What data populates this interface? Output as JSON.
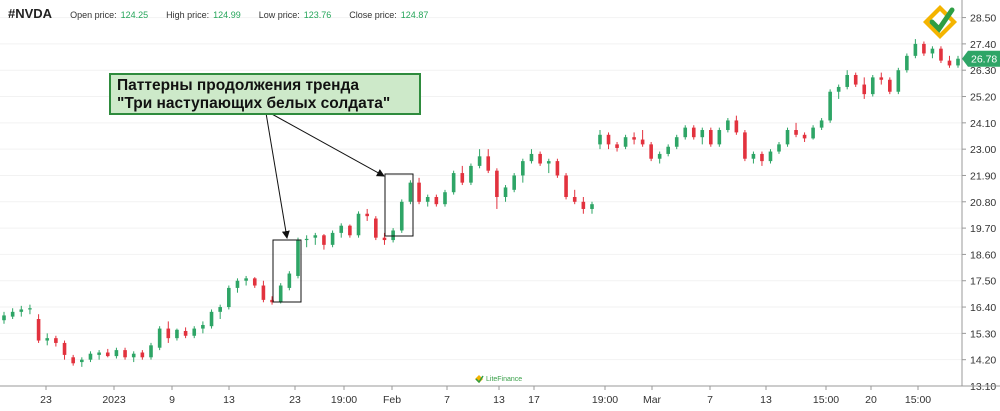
{
  "header": {
    "ticker": "#NVDA",
    "open_label": "Open price:",
    "open_value": "124.25",
    "high_label": "High price:",
    "high_value": "124.99",
    "low_label": "Low price:",
    "low_value": "123.76",
    "close_label": "Close price:",
    "close_value": "124.87"
  },
  "annotation": {
    "line1": "Паттерны продолжения тренда",
    "line2": "\"Три наступающих белых солдата\""
  },
  "colors": {
    "bull": "#2ea566",
    "bear": "#e2323e",
    "price_tag": "#2ea566",
    "callout_bg": "#cde9c9",
    "callout_border": "#2e8b3d"
  },
  "watermark": "LiteFinance",
  "chart_data": {
    "type": "candlestick",
    "ylim": [
      13.1,
      28.9
    ],
    "y_ticks": [
      "28.50",
      "27.40",
      "26.30",
      "25.20",
      "24.10",
      "23.00",
      "21.90",
      "20.80",
      "19.70",
      "18.60",
      "17.50",
      "16.40",
      "15.30",
      "14.20",
      "13.10"
    ],
    "x_ticks": [
      "23",
      "2023",
      "9",
      "13",
      "23",
      "19:00",
      "Feb",
      "7",
      "13",
      "17",
      "19:00",
      "Mar",
      "7",
      "13",
      "15:00",
      "20",
      "15:00"
    ],
    "last_price": "26.78",
    "candles": [
      {
        "o": 15.85,
        "h": 16.2,
        "l": 15.7,
        "c": 16.05
      },
      {
        "o": 16.0,
        "h": 16.35,
        "l": 15.9,
        "c": 16.2
      },
      {
        "o": 16.2,
        "h": 16.45,
        "l": 16.0,
        "c": 16.3
      },
      {
        "o": 16.3,
        "h": 16.5,
        "l": 16.1,
        "c": 16.35
      },
      {
        "o": 15.9,
        "h": 16.1,
        "l": 14.9,
        "c": 15.0
      },
      {
        "o": 15.0,
        "h": 15.3,
        "l": 14.8,
        "c": 15.1
      },
      {
        "o": 15.1,
        "h": 15.2,
        "l": 14.75,
        "c": 14.9
      },
      {
        "o": 14.9,
        "h": 15.0,
        "l": 14.2,
        "c": 14.4
      },
      {
        "o": 14.3,
        "h": 14.4,
        "l": 13.95,
        "c": 14.05
      },
      {
        "o": 14.1,
        "h": 14.3,
        "l": 13.9,
        "c": 14.2
      },
      {
        "o": 14.2,
        "h": 14.55,
        "l": 14.1,
        "c": 14.45
      },
      {
        "o": 14.4,
        "h": 14.6,
        "l": 14.2,
        "c": 14.5
      },
      {
        "o": 14.5,
        "h": 14.65,
        "l": 14.3,
        "c": 14.35
      },
      {
        "o": 14.35,
        "h": 14.7,
        "l": 14.25,
        "c": 14.6
      },
      {
        "o": 14.6,
        "h": 14.7,
        "l": 14.2,
        "c": 14.3
      },
      {
        "o": 14.3,
        "h": 14.55,
        "l": 14.1,
        "c": 14.45
      },
      {
        "o": 14.5,
        "h": 14.6,
        "l": 14.2,
        "c": 14.3
      },
      {
        "o": 14.3,
        "h": 14.9,
        "l": 14.2,
        "c": 14.8
      },
      {
        "o": 14.7,
        "h": 15.6,
        "l": 14.6,
        "c": 15.5
      },
      {
        "o": 15.5,
        "h": 15.8,
        "l": 14.9,
        "c": 15.1
      },
      {
        "o": 15.1,
        "h": 15.5,
        "l": 15.0,
        "c": 15.45
      },
      {
        "o": 15.4,
        "h": 15.55,
        "l": 15.1,
        "c": 15.2
      },
      {
        "o": 15.2,
        "h": 15.6,
        "l": 15.1,
        "c": 15.5
      },
      {
        "o": 15.5,
        "h": 15.8,
        "l": 15.3,
        "c": 15.65
      },
      {
        "o": 15.6,
        "h": 16.3,
        "l": 15.5,
        "c": 16.2
      },
      {
        "o": 16.2,
        "h": 16.5,
        "l": 15.9,
        "c": 16.4
      },
      {
        "o": 16.4,
        "h": 17.3,
        "l": 16.3,
        "c": 17.2
      },
      {
        "o": 17.2,
        "h": 17.6,
        "l": 17.0,
        "c": 17.5
      },
      {
        "o": 17.5,
        "h": 17.7,
        "l": 17.3,
        "c": 17.6
      },
      {
        "o": 17.6,
        "h": 17.65,
        "l": 17.2,
        "c": 17.3
      },
      {
        "o": 17.3,
        "h": 17.5,
        "l": 16.6,
        "c": 16.7
      },
      {
        "o": 16.7,
        "h": 16.85,
        "l": 16.5,
        "c": 16.6
      },
      {
        "o": 16.6,
        "h": 17.4,
        "l": 16.55,
        "c": 17.3
      },
      {
        "o": 17.2,
        "h": 17.9,
        "l": 17.1,
        "c": 17.8
      },
      {
        "o": 17.7,
        "h": 19.3,
        "l": 17.6,
        "c": 19.2
      },
      {
        "o": 19.2,
        "h": 19.4,
        "l": 18.9,
        "c": 19.25
      },
      {
        "o": 19.3,
        "h": 19.5,
        "l": 19.0,
        "c": 19.4
      },
      {
        "o": 19.4,
        "h": 19.45,
        "l": 18.8,
        "c": 19.0
      },
      {
        "o": 19.0,
        "h": 19.6,
        "l": 18.9,
        "c": 19.5
      },
      {
        "o": 19.5,
        "h": 19.9,
        "l": 19.3,
        "c": 19.8
      },
      {
        "o": 19.8,
        "h": 19.85,
        "l": 19.3,
        "c": 19.4
      },
      {
        "o": 19.4,
        "h": 20.4,
        "l": 19.3,
        "c": 20.3
      },
      {
        "o": 20.3,
        "h": 20.5,
        "l": 20.0,
        "c": 20.2
      },
      {
        "o": 20.1,
        "h": 20.2,
        "l": 19.2,
        "c": 19.3
      },
      {
        "o": 19.3,
        "h": 19.5,
        "l": 19.0,
        "c": 19.2
      },
      {
        "o": 19.2,
        "h": 19.7,
        "l": 19.1,
        "c": 19.6
      },
      {
        "o": 19.6,
        "h": 20.9,
        "l": 19.5,
        "c": 20.8
      },
      {
        "o": 20.8,
        "h": 21.7,
        "l": 20.7,
        "c": 21.6
      },
      {
        "o": 21.6,
        "h": 21.8,
        "l": 20.7,
        "c": 20.8
      },
      {
        "o": 20.8,
        "h": 21.1,
        "l": 20.6,
        "c": 21.0
      },
      {
        "o": 21.0,
        "h": 21.1,
        "l": 20.6,
        "c": 20.7
      },
      {
        "o": 20.7,
        "h": 21.3,
        "l": 20.6,
        "c": 21.2
      },
      {
        "o": 21.2,
        "h": 22.1,
        "l": 21.1,
        "c": 22.0
      },
      {
        "o": 22.0,
        "h": 22.3,
        "l": 21.5,
        "c": 21.6
      },
      {
        "o": 21.6,
        "h": 22.4,
        "l": 21.5,
        "c": 22.3
      },
      {
        "o": 22.3,
        "h": 23.0,
        "l": 22.2,
        "c": 22.7
      },
      {
        "o": 22.7,
        "h": 23.0,
        "l": 22.0,
        "c": 22.1
      },
      {
        "o": 22.1,
        "h": 22.2,
        "l": 20.5,
        "c": 21.0
      },
      {
        "o": 21.0,
        "h": 21.5,
        "l": 20.8,
        "c": 21.4
      },
      {
        "o": 21.3,
        "h": 22.0,
        "l": 21.2,
        "c": 21.9
      },
      {
        "o": 21.9,
        "h": 22.6,
        "l": 21.6,
        "c": 22.5
      },
      {
        "o": 22.5,
        "h": 23.0,
        "l": 22.4,
        "c": 22.8
      },
      {
        "o": 22.8,
        "h": 22.9,
        "l": 22.3,
        "c": 22.4
      },
      {
        "o": 22.4,
        "h": 22.6,
        "l": 22.0,
        "c": 22.5
      },
      {
        "o": 22.5,
        "h": 22.6,
        "l": 21.8,
        "c": 21.9
      },
      {
        "o": 21.9,
        "h": 22.0,
        "l": 20.9,
        "c": 21.0
      },
      {
        "o": 21.0,
        "h": 21.3,
        "l": 20.7,
        "c": 20.8
      },
      {
        "o": 20.8,
        "h": 21.0,
        "l": 20.3,
        "c": 20.5
      },
      {
        "o": 20.5,
        "h": 20.8,
        "l": 20.3,
        "c": 20.7
      },
      {
        "o": 23.2,
        "h": 23.8,
        "l": 23.0,
        "c": 23.6
      },
      {
        "o": 23.6,
        "h": 23.7,
        "l": 23.0,
        "c": 23.2
      },
      {
        "o": 23.2,
        "h": 23.3,
        "l": 22.9,
        "c": 23.05
      },
      {
        "o": 23.1,
        "h": 23.6,
        "l": 23.0,
        "c": 23.5
      },
      {
        "o": 23.5,
        "h": 23.7,
        "l": 23.2,
        "c": 23.4
      },
      {
        "o": 23.4,
        "h": 23.8,
        "l": 23.1,
        "c": 23.2
      },
      {
        "o": 23.2,
        "h": 23.3,
        "l": 22.5,
        "c": 22.6
      },
      {
        "o": 22.6,
        "h": 22.9,
        "l": 22.4,
        "c": 22.8
      },
      {
        "o": 22.8,
        "h": 23.2,
        "l": 22.7,
        "c": 23.1
      },
      {
        "o": 23.1,
        "h": 23.6,
        "l": 23.0,
        "c": 23.5
      },
      {
        "o": 23.5,
        "h": 24.0,
        "l": 23.4,
        "c": 23.9
      },
      {
        "o": 23.9,
        "h": 24.0,
        "l": 23.4,
        "c": 23.5
      },
      {
        "o": 23.5,
        "h": 23.9,
        "l": 23.2,
        "c": 23.8
      },
      {
        "o": 23.8,
        "h": 23.9,
        "l": 23.1,
        "c": 23.2
      },
      {
        "o": 23.2,
        "h": 23.9,
        "l": 23.1,
        "c": 23.8
      },
      {
        "o": 23.8,
        "h": 24.3,
        "l": 23.7,
        "c": 24.2
      },
      {
        "o": 24.2,
        "h": 24.4,
        "l": 23.6,
        "c": 23.7
      },
      {
        "o": 23.7,
        "h": 23.8,
        "l": 22.5,
        "c": 22.6
      },
      {
        "o": 22.6,
        "h": 22.9,
        "l": 22.4,
        "c": 22.8
      },
      {
        "o": 22.8,
        "h": 22.9,
        "l": 22.3,
        "c": 22.5
      },
      {
        "o": 22.5,
        "h": 23.0,
        "l": 22.4,
        "c": 22.9
      },
      {
        "o": 22.9,
        "h": 23.3,
        "l": 22.8,
        "c": 23.2
      },
      {
        "o": 23.2,
        "h": 23.9,
        "l": 23.1,
        "c": 23.8
      },
      {
        "o": 23.8,
        "h": 24.1,
        "l": 23.5,
        "c": 23.6
      },
      {
        "o": 23.6,
        "h": 23.7,
        "l": 23.3,
        "c": 23.45
      },
      {
        "o": 23.45,
        "h": 24.0,
        "l": 23.4,
        "c": 23.9
      },
      {
        "o": 23.9,
        "h": 24.3,
        "l": 23.8,
        "c": 24.2
      },
      {
        "o": 24.2,
        "h": 25.5,
        "l": 24.1,
        "c": 25.4
      },
      {
        "o": 25.4,
        "h": 25.7,
        "l": 25.1,
        "c": 25.6
      },
      {
        "o": 25.6,
        "h": 26.3,
        "l": 25.5,
        "c": 26.1
      },
      {
        "o": 26.1,
        "h": 26.2,
        "l": 25.6,
        "c": 25.7
      },
      {
        "o": 25.7,
        "h": 26.0,
        "l": 25.1,
        "c": 25.3
      },
      {
        "o": 25.3,
        "h": 26.1,
        "l": 25.2,
        "c": 26.0
      },
      {
        "o": 26.0,
        "h": 26.2,
        "l": 25.7,
        "c": 25.9
      },
      {
        "o": 25.9,
        "h": 26.0,
        "l": 25.3,
        "c": 25.4
      },
      {
        "o": 25.4,
        "h": 26.4,
        "l": 25.3,
        "c": 26.3
      },
      {
        "o": 26.3,
        "h": 27.0,
        "l": 26.2,
        "c": 26.9
      },
      {
        "o": 26.9,
        "h": 27.6,
        "l": 26.8,
        "c": 27.4
      },
      {
        "o": 27.4,
        "h": 27.5,
        "l": 26.9,
        "c": 27.0
      },
      {
        "o": 27.0,
        "h": 27.3,
        "l": 26.8,
        "c": 27.2
      },
      {
        "o": 27.2,
        "h": 27.3,
        "l": 26.6,
        "c": 26.7
      },
      {
        "o": 26.7,
        "h": 26.9,
        "l": 26.4,
        "c": 26.5
      },
      {
        "o": 26.5,
        "h": 26.9,
        "l": 26.4,
        "c": 26.78
      }
    ]
  }
}
